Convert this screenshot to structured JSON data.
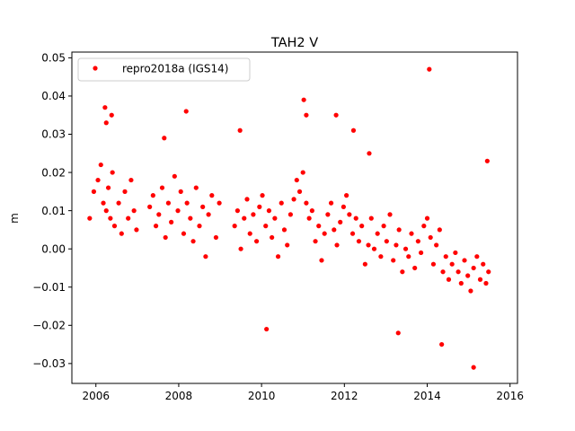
{
  "chart_data": {
    "type": "scatter",
    "title": "TAH2 V",
    "xlabel": "",
    "ylabel": "m",
    "xlim": [
      2005.42,
      2016.18
    ],
    "ylim": [
      -0.0352,
      0.0515
    ],
    "xticks": [
      2006,
      2008,
      2010,
      2012,
      2014,
      2016
    ],
    "xtick_labels": [
      "2006",
      "2008",
      "2010",
      "2012",
      "2014",
      "2016"
    ],
    "yticks": [
      -0.03,
      -0.02,
      -0.01,
      0.0,
      0.01,
      0.02,
      0.03,
      0.04,
      0.05
    ],
    "ytick_labels": [
      "−0.03",
      "−0.02",
      "−0.01",
      "0.00",
      "0.01",
      "0.02",
      "0.03",
      "0.04",
      "0.05"
    ],
    "grid": false,
    "legend_position": "top-left",
    "color": "#ff0000",
    "series": [
      {
        "name": "repro2018a (IGS14)",
        "x": [
          2005.85,
          2005.95,
          2006.05,
          2006.12,
          2006.18,
          2006.25,
          2006.3,
          2006.35,
          2006.4,
          2006.45,
          2006.55,
          2006.62,
          2006.7,
          2006.78,
          2006.85,
          2006.92,
          2006.98,
          2007.3,
          2007.38,
          2007.45,
          2007.52,
          2007.6,
          2007.68,
          2007.75,
          2007.82,
          2007.9,
          2007.98,
          2008.05,
          2008.12,
          2008.2,
          2008.28,
          2008.35,
          2008.42,
          2008.5,
          2008.58,
          2008.65,
          2008.72,
          2008.8,
          2008.9,
          2008.98,
          2009.35,
          2009.42,
          2009.5,
          2009.58,
          2009.65,
          2009.72,
          2009.8,
          2009.88,
          2009.95,
          2010.02,
          2010.1,
          2010.18,
          2010.25,
          2010.32,
          2010.4,
          2010.48,
          2010.55,
          2010.62,
          2010.7,
          2010.78,
          2010.85,
          2010.92,
          2011.0,
          2011.08,
          2011.15,
          2011.22,
          2011.3,
          2011.38,
          2011.45,
          2011.52,
          2011.6,
          2011.68,
          2011.75,
          2011.82,
          2011.9,
          2011.98,
          2012.05,
          2012.12,
          2012.2,
          2012.28,
          2012.35,
          2012.42,
          2012.5,
          2012.58,
          2012.65,
          2012.72,
          2012.8,
          2012.88,
          2012.95,
          2013.02,
          2013.1,
          2013.18,
          2013.25,
          2013.32,
          2013.4,
          2013.48,
          2013.55,
          2013.62,
          2013.7,
          2013.78,
          2013.85,
          2013.92,
          2014.0,
          2014.08,
          2014.15,
          2014.22,
          2014.3,
          2014.38,
          2014.45,
          2014.52,
          2014.6,
          2014.68,
          2014.75,
          2014.82,
          2014.9,
          2014.98,
          2015.05,
          2015.12,
          2015.2,
          2015.28,
          2015.35,
          2015.42,
          2015.48,
          2006.22,
          2006.38,
          2008.18,
          2011.02,
          2011.08,
          2012.22,
          2014.05,
          2015.12,
          2010.12,
          2013.3,
          2014.35,
          2006.25,
          2007.65,
          2009.48,
          2011.8,
          2012.6,
          2015.45
        ],
        "y": [
          0.008,
          0.015,
          0.018,
          0.022,
          0.012,
          0.01,
          0.016,
          0.008,
          0.02,
          0.006,
          0.012,
          0.004,
          0.015,
          0.008,
          0.018,
          0.01,
          0.005,
          0.011,
          0.014,
          0.006,
          0.009,
          0.016,
          0.003,
          0.012,
          0.007,
          0.019,
          0.01,
          0.015,
          0.004,
          0.012,
          0.008,
          0.002,
          0.016,
          0.006,
          0.011,
          -0.002,
          0.009,
          0.014,
          0.003,
          0.012,
          0.006,
          0.01,
          0.0,
          0.008,
          0.013,
          0.004,
          0.009,
          0.002,
          0.011,
          0.014,
          0.006,
          0.01,
          0.003,
          0.008,
          -0.002,
          0.012,
          0.005,
          0.001,
          0.009,
          0.013,
          0.018,
          0.015,
          0.02,
          0.012,
          0.008,
          0.01,
          0.002,
          0.006,
          -0.003,
          0.004,
          0.009,
          0.012,
          0.005,
          0.001,
          0.007,
          0.011,
          0.014,
          0.009,
          0.004,
          0.008,
          0.002,
          0.006,
          -0.004,
          0.001,
          0.008,
          0.0,
          0.004,
          -0.002,
          0.006,
          0.002,
          0.009,
          -0.003,
          0.001,
          0.005,
          -0.006,
          0.0,
          -0.002,
          0.004,
          -0.005,
          0.002,
          -0.001,
          0.006,
          0.008,
          0.003,
          -0.004,
          0.001,
          0.005,
          -0.006,
          -0.002,
          -0.008,
          -0.004,
          -0.001,
          -0.006,
          -0.009,
          -0.003,
          -0.007,
          -0.011,
          -0.005,
          -0.002,
          -0.008,
          -0.004,
          -0.009,
          -0.006,
          0.037,
          0.035,
          0.036,
          0.039,
          0.035,
          0.031,
          0.047,
          -0.031,
          -0.021,
          -0.022,
          -0.025,
          0.033,
          0.029,
          0.031,
          0.035,
          0.025,
          0.023
        ]
      }
    ]
  }
}
